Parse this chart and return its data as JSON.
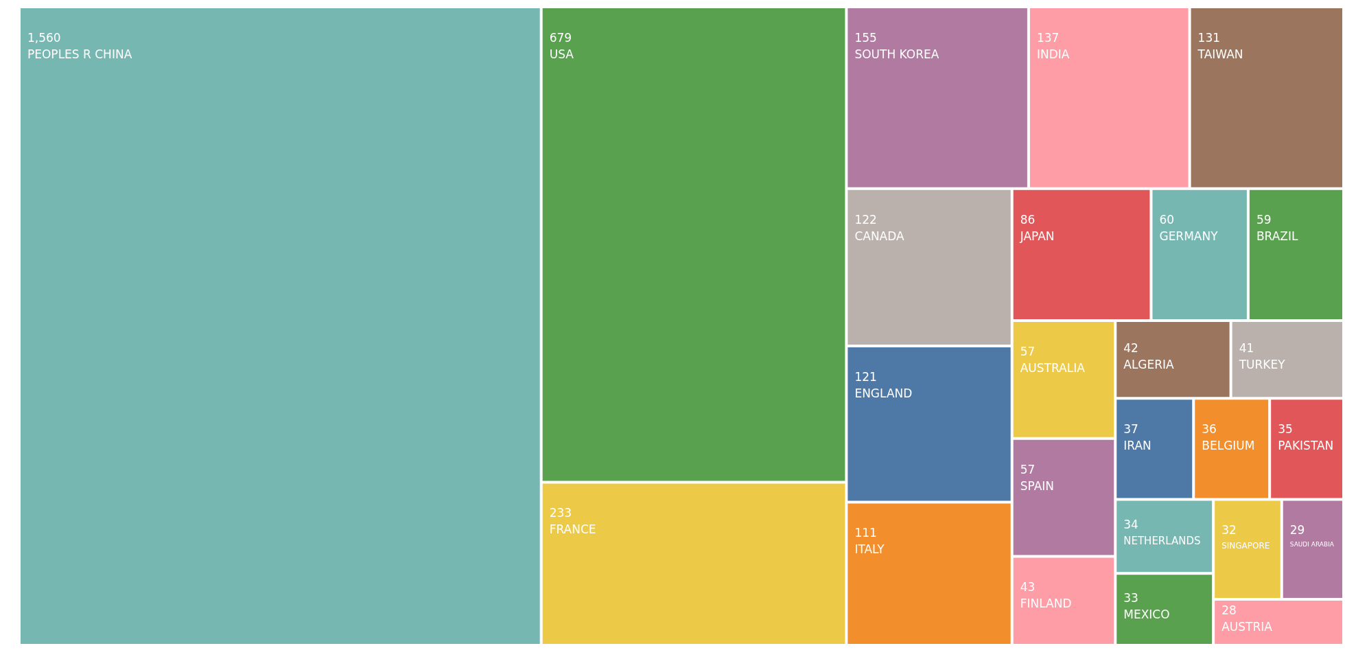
{
  "chart_data": {
    "type": "other",
    "categories": [
      "PEOPLES R CHINA",
      "USA",
      "FRANCE",
      "SOUTH KOREA",
      "INDIA",
      "TAIWAN",
      "CANADA",
      "ENGLAND",
      "ITALY",
      "JAPAN",
      "GERMANY",
      "BRAZIL",
      "AUSTRALIA",
      "SPAIN",
      "FINLAND",
      "ALGERIA",
      "TURKEY",
      "IRAN",
      "BELGIUM",
      "PAKISTAN",
      "NETHERLANDS",
      "MEXICO",
      "SINGAPORE",
      "SAUDI ARABIA",
      "AUSTRIA"
    ],
    "values": [
      1560,
      679,
      233,
      155,
      137,
      131,
      122,
      121,
      111,
      86,
      60,
      59,
      57,
      57,
      43,
      42,
      41,
      37,
      36,
      35,
      34,
      33,
      32,
      29,
      28
    ],
    "value_labels": [
      "1,560",
      "679",
      "233",
      "155",
      "137",
      "131",
      "122",
      "121",
      "111",
      "86",
      "60",
      "59",
      "57",
      "57",
      "43",
      "42",
      "41",
      "37",
      "36",
      "35",
      "34",
      "33",
      "32",
      "29",
      "28"
    ],
    "colors": [
      "#76b7b2",
      "#59a14f",
      "#edc948",
      "#b07aa1",
      "#ff9da7",
      "#9c755f",
      "#bab0ac",
      "#4e79a7",
      "#f28e2b",
      "#e15759",
      "#76b7b2",
      "#59a14f",
      "#edc948",
      "#b07aa1",
      "#ff9da7",
      "#9c755f",
      "#bab0ac",
      "#4e79a7",
      "#f28e2b",
      "#e15759",
      "#76b7b2",
      "#59a14f",
      "#edc948",
      "#b07aa1",
      "#ff9da7"
    ]
  }
}
